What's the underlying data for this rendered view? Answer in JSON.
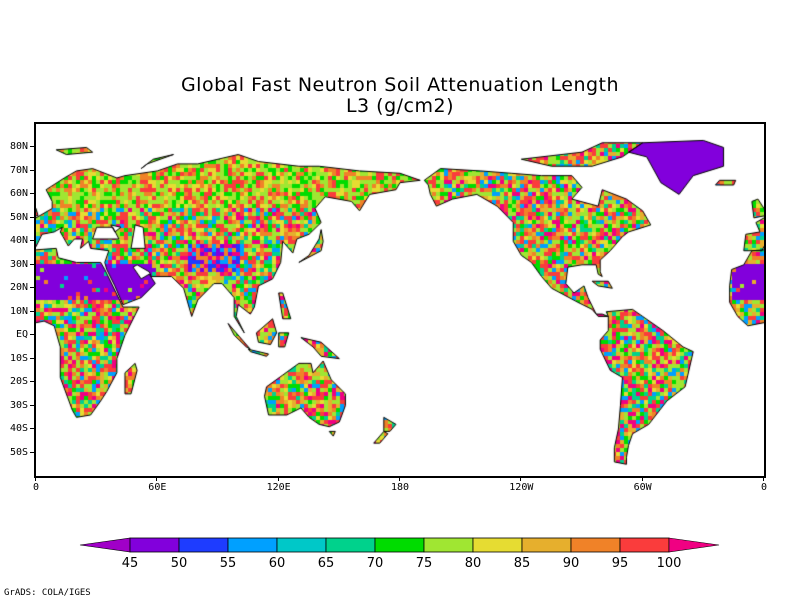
{
  "title": {
    "line1": "Global Fast Neutron Soil Attenuation Length",
    "line2": "L3 (g/cm2)"
  },
  "lat_labels": [
    "80N",
    "70N",
    "60N",
    "50N",
    "40N",
    "30N",
    "20N",
    "10N",
    "EQ",
    "10S",
    "20S",
    "30S",
    "40S",
    "50S"
  ],
  "lat_values": [
    80,
    70,
    60,
    50,
    40,
    30,
    20,
    10,
    0,
    -10,
    -20,
    -30,
    -40,
    -50
  ],
  "lon_labels": [
    "0",
    "60E",
    "120E",
    "180",
    "120W",
    "60W",
    "0"
  ],
  "lon_values": [
    0,
    60,
    120,
    180,
    240,
    300,
    360
  ],
  "map_extent": {
    "lon": [
      0,
      360
    ],
    "lat": [
      -60,
      90
    ]
  },
  "colorbar": {
    "labels": [
      "45",
      "50",
      "55",
      "60",
      "65",
      "70",
      "75",
      "80",
      "85",
      "90",
      "95",
      "100"
    ],
    "colors": [
      "#a000c8",
      "#8200dc",
      "#1e3cff",
      "#00a0ff",
      "#00c8c8",
      "#00d28c",
      "#00dc00",
      "#a0e632",
      "#e6dc32",
      "#e6af2d",
      "#f08228",
      "#fa3c3c",
      "#f00082"
    ]
  },
  "footer": "GrADS: COLA/IGES"
}
